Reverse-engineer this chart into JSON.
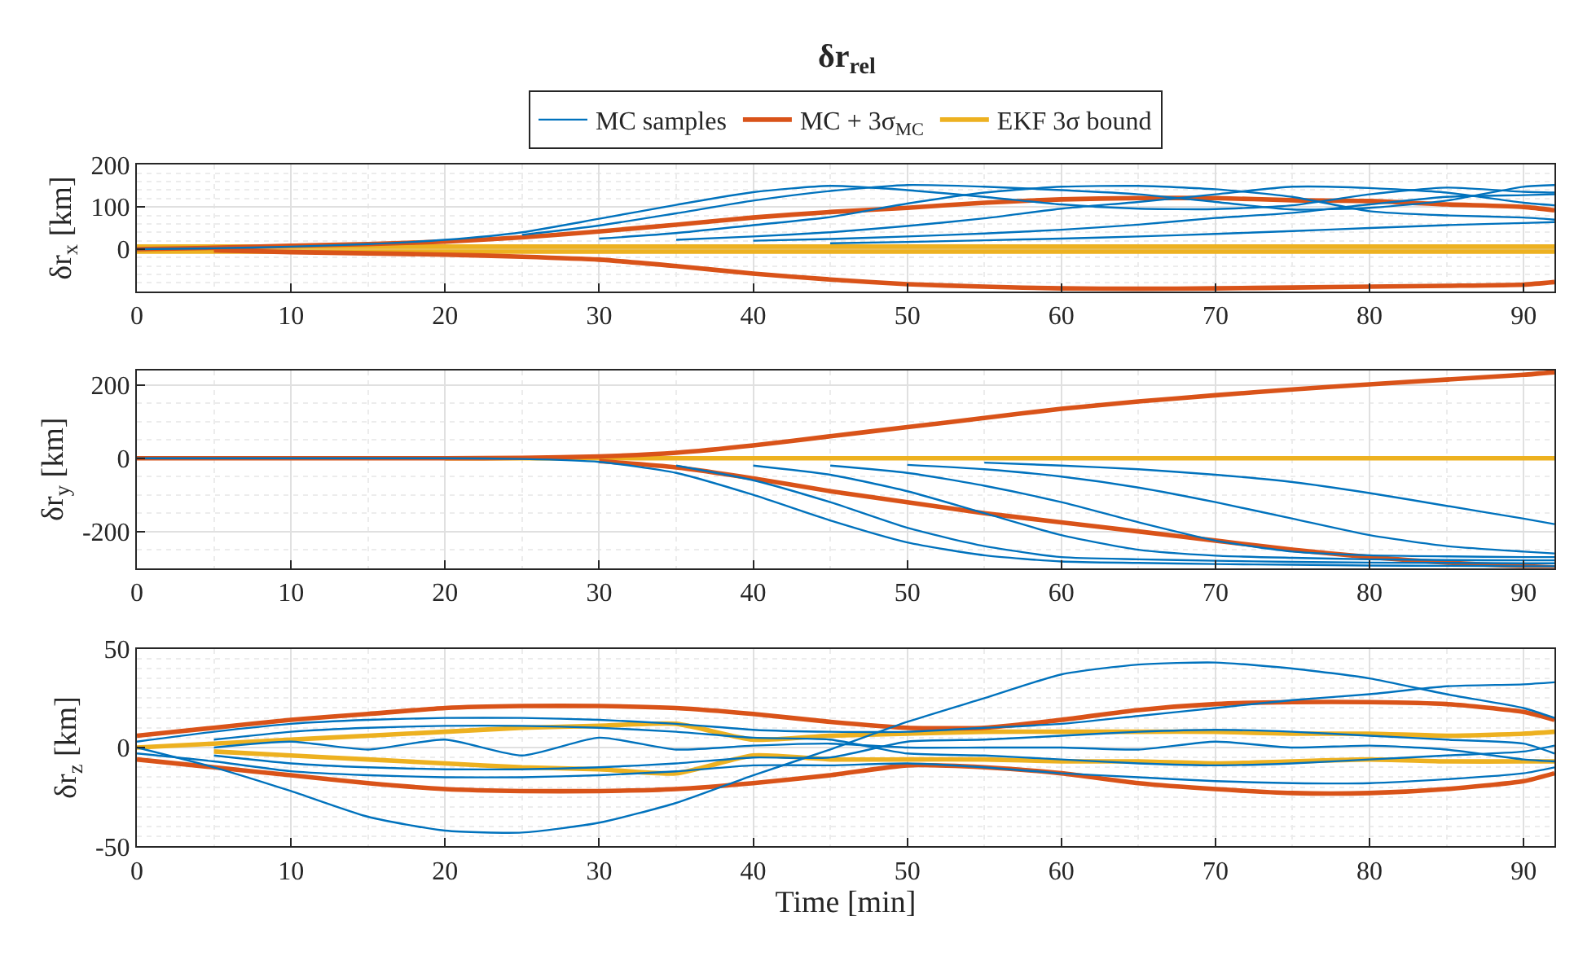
{
  "chart_data": [
    {
      "type": "line",
      "title": "δr$_{rel}$",
      "ylabel": "δr$_{x}$ [km]",
      "xlim": [
        0,
        92
      ],
      "xticks": [
        0,
        10,
        20,
        30,
        40,
        50,
        60,
        70,
        80,
        90
      ],
      "ylim": [
        -100,
        200
      ],
      "yticks": [
        0,
        100,
        200
      ],
      "grid": true,
      "legend": "top",
      "x": [
        0,
        5,
        10,
        15,
        20,
        25,
        30,
        35,
        40,
        45,
        50,
        55,
        60,
        65,
        70,
        75,
        80,
        85,
        90,
        92
      ],
      "series": [
        {
          "name": "EKF 3σ bound",
          "color": "#edb120",
          "values": [
            6,
            6,
            6,
            6,
            6,
            6,
            6,
            6,
            6,
            6,
            6,
            6,
            6,
            6,
            6,
            6,
            6,
            6,
            6,
            6
          ]
        },
        {
          "color": "#edb120",
          "values": [
            -6,
            -6,
            -6,
            -6,
            -6,
            -6,
            -6,
            -6,
            -6,
            -6,
            -6,
            -6,
            -6,
            -6,
            -6,
            -6,
            -6,
            -6,
            -6,
            -6
          ]
        },
        {
          "name": "MC + 3σ$_{MC}$",
          "color": "#d95319",
          "values": [
            0,
            3,
            8,
            12,
            18,
            28,
            42,
            58,
            75,
            88,
            98,
            110,
            118,
            121,
            121,
            116,
            114,
            106,
            100,
            92
          ]
        },
        {
          "color": "#d95319",
          "values": [
            null,
            -3,
            -7,
            -10,
            -13,
            -18,
            -25,
            -40,
            -58,
            -72,
            -83,
            -89,
            -93,
            -94,
            -93,
            -91,
            -89,
            -87,
            -84,
            -78
          ]
        },
        {
          "name": "MC samples",
          "color": "#0072bd",
          "values": [
            0,
            2,
            6,
            12,
            22,
            40,
            72,
            105,
            135,
            150,
            140,
            124,
            106,
            96,
            95,
            104,
            130,
            146,
            136,
            134
          ]
        },
        {
          "color": "#0072bd",
          "values": [
            null,
            null,
            null,
            null,
            null,
            34,
            56,
            85,
            115,
            138,
            152,
            148,
            140,
            130,
            112,
            94,
            98,
            115,
            148,
            152
          ]
        },
        {
          "color": "#0072bd",
          "values": [
            null,
            null,
            null,
            null,
            null,
            null,
            25,
            38,
            57,
            76,
            108,
            134,
            148,
            150,
            142,
            124,
            90,
            80,
            75,
            70
          ]
        },
        {
          "color": "#0072bd",
          "values": [
            null,
            null,
            null,
            null,
            null,
            null,
            null,
            22,
            30,
            40,
            55,
            73,
            96,
            112,
            130,
            148,
            145,
            134,
            110,
            104
          ]
        },
        {
          "color": "#0072bd",
          "values": [
            null,
            null,
            null,
            null,
            null,
            null,
            null,
            null,
            20,
            24,
            30,
            37,
            46,
            58,
            74,
            86,
            106,
            124,
            128,
            130
          ]
        },
        {
          "color": "#0072bd",
          "values": [
            null,
            null,
            null,
            null,
            null,
            null,
            null,
            null,
            null,
            14,
            17,
            21,
            25,
            30,
            36,
            43,
            50,
            57,
            62,
            64
          ]
        }
      ]
    },
    {
      "type": "line",
      "ylabel": "δr$_{y}$ [km]",
      "xlim": [
        0,
        92
      ],
      "xticks": [
        0,
        10,
        20,
        30,
        40,
        50,
        60,
        70,
        80,
        90
      ],
      "ylim": [
        -300,
        240
      ],
      "yticks": [
        -200,
        0,
        200
      ],
      "grid": true,
      "x": [
        0,
        5,
        10,
        15,
        20,
        25,
        30,
        35,
        40,
        45,
        50,
        55,
        60,
        65,
        70,
        75,
        80,
        85,
        90,
        92
      ],
      "series": [
        {
          "color": "#edb120",
          "values": [
            null,
            null,
            null,
            null,
            0,
            0,
            0,
            0,
            0,
            0,
            0,
            0,
            0,
            0,
            0,
            0,
            0,
            0,
            0,
            0
          ]
        },
        {
          "color": "#d95319",
          "values": [
            0,
            0,
            0,
            0,
            0,
            1,
            5,
            15,
            35,
            60,
            85,
            110,
            135,
            155,
            172,
            188,
            202,
            215,
            228,
            235
          ]
        },
        {
          "color": "#d95319",
          "values": [
            null,
            null,
            null,
            null,
            null,
            null,
            -8,
            -25,
            -55,
            -90,
            -120,
            -150,
            -175,
            -200,
            -225,
            -250,
            -270,
            -285,
            -295,
            -298
          ]
        },
        {
          "color": "#0072bd",
          "values": [
            0,
            0,
            0,
            0,
            0,
            -2,
            -10,
            -40,
            -100,
            -170,
            -230,
            -265,
            -282,
            -286,
            -289,
            -291,
            -293,
            -294,
            -295,
            -295
          ]
        },
        {
          "color": "#0072bd",
          "values": [
            null,
            null,
            null,
            null,
            null,
            null,
            null,
            -20,
            -60,
            -120,
            -190,
            -240,
            -270,
            -276,
            -280,
            -283,
            -285,
            -286,
            -287,
            -287
          ]
        },
        {
          "color": "#0072bd",
          "values": [
            null,
            null,
            null,
            null,
            null,
            null,
            null,
            null,
            -20,
            -45,
            -90,
            -150,
            -210,
            -250,
            -266,
            -272,
            -276,
            -278,
            -279,
            -279
          ]
        },
        {
          "color": "#0072bd",
          "values": [
            null,
            null,
            null,
            null,
            null,
            null,
            null,
            null,
            null,
            -20,
            -40,
            -75,
            -120,
            -175,
            -225,
            -255,
            -265,
            -268,
            -270,
            -270
          ]
        },
        {
          "color": "#0072bd",
          "values": [
            null,
            null,
            null,
            null,
            null,
            null,
            null,
            null,
            null,
            null,
            -18,
            -30,
            -50,
            -80,
            -120,
            -165,
            -210,
            -240,
            -255,
            -260
          ]
        },
        {
          "color": "#0072bd",
          "values": [
            null,
            null,
            null,
            null,
            null,
            null,
            null,
            null,
            null,
            null,
            null,
            -12,
            -20,
            -30,
            -45,
            -65,
            -95,
            -130,
            -165,
            -180
          ]
        }
      ]
    },
    {
      "type": "line",
      "ylabel": "δr$_{z}$ [km]",
      "xlabel": "Time [min]",
      "xlim": [
        0,
        92
      ],
      "xticks": [
        0,
        10,
        20,
        30,
        40,
        50,
        60,
        70,
        80,
        90
      ],
      "ylim": [
        -50,
        50
      ],
      "yticks": [
        -50,
        0,
        50
      ],
      "grid": true,
      "x": [
        0,
        5,
        10,
        15,
        20,
        25,
        30,
        35,
        40,
        45,
        50,
        55,
        60,
        65,
        70,
        75,
        80,
        85,
        90,
        92
      ],
      "series": [
        {
          "color": "#edb120",
          "values": [
            0,
            2,
            4,
            6,
            8,
            10,
            11,
            12,
            4,
            6,
            7,
            8,
            8,
            8,
            8,
            7,
            7,
            6,
            7,
            8
          ]
        },
        {
          "color": "#edb120",
          "values": [
            null,
            -2,
            -4,
            -6,
            -8,
            -10,
            -11,
            -13,
            -4,
            -6,
            -6,
            -6,
            -7,
            -7,
            -8,
            -7,
            -6,
            -7,
            -7,
            -7
          ]
        },
        {
          "color": "#d95319",
          "values": [
            6,
            10,
            14,
            17,
            20,
            21,
            21,
            20,
            17,
            13,
            10,
            10,
            14,
            19,
            22,
            23,
            23,
            22,
            18,
            14
          ]
        },
        {
          "color": "#d95319",
          "values": [
            -6,
            -10,
            -14,
            -18,
            -21,
            -22,
            -22,
            -21,
            -18,
            -14,
            -9,
            -10,
            -13,
            -18,
            -21,
            -23,
            -23,
            -21,
            -17,
            -13
          ]
        },
        {
          "color": "#0072bd",
          "values": [
            0,
            -10,
            -22,
            -35,
            -42,
            -43,
            -38,
            -28,
            -14,
            -1,
            13,
            25,
            37,
            42,
            43,
            40,
            35,
            27,
            20,
            15
          ]
        },
        {
          "color": "#0072bd",
          "values": [
            null,
            4,
            8,
            10,
            11,
            11,
            10,
            8,
            5,
            4,
            -3,
            -4,
            -6,
            -8,
            -9,
            -8,
            -6,
            -4,
            -2,
            1
          ]
        },
        {
          "color": "#0072bd",
          "values": [
            null,
            -4,
            -8,
            -10,
            -11,
            -11,
            -10,
            -8,
            -5,
            -5,
            3,
            4,
            6,
            8,
            9,
            8,
            6,
            4,
            2,
            -3
          ]
        },
        {
          "color": "#0072bd",
          "values": [
            3,
            8,
            12,
            14,
            15,
            15,
            14,
            12,
            9,
            8,
            8,
            10,
            12,
            16,
            20,
            24,
            27,
            31,
            32,
            33
          ]
        },
        {
          "color": "#0072bd",
          "values": [
            -3,
            -7,
            -12,
            -14,
            -15,
            -15,
            -14,
            -12,
            -9,
            -9,
            -8,
            -10,
            -13,
            -15,
            -17,
            -18,
            -18,
            -16,
            -13,
            -10
          ]
        },
        {
          "color": "#0072bd",
          "values": [
            null,
            0,
            3,
            -1,
            4,
            -4,
            5,
            -1,
            1,
            2,
            0,
            0,
            0,
            -1,
            3,
            0,
            1,
            -1,
            -6,
            -7
          ]
        }
      ]
    }
  ]
}
